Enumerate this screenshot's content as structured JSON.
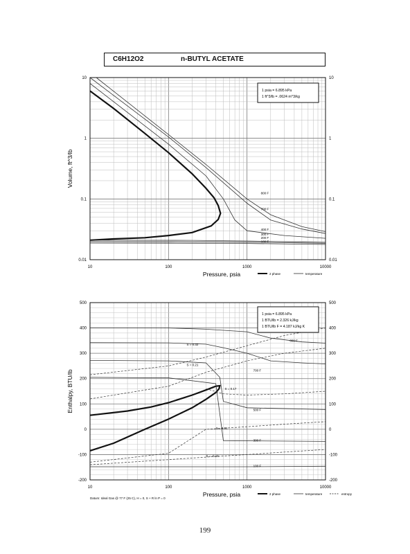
{
  "header": {
    "formula": "C6H12O2",
    "name": "n-BUTYL ACETATE"
  },
  "page_number": "199",
  "chart_data": [
    {
      "id": "volume",
      "type": "line",
      "xlabel": "Pressure,  psia",
      "ylabel": "Volume,  ft^3/lb",
      "xscale": "log",
      "yscale": "log",
      "xlim": [
        10,
        10000
      ],
      "ylim": [
        0.01,
        10
      ],
      "x_ticks": [
        "10",
        "100",
        "1000",
        "10000"
      ],
      "y_ticks_left": [
        "10",
        "1",
        "0.1",
        "0.01"
      ],
      "y_ticks_right": [
        "10",
        "1",
        "0.1",
        "0.01"
      ],
      "grid": true,
      "conversion_box": [
        "1 psia = 6.895 kPa",
        "1 ft^3/lb = .0624 m^3/kg"
      ],
      "legend": [
        {
          "label": "2 phase",
          "style": "thick"
        },
        {
          "label": "temperature",
          "style": "thin"
        }
      ],
      "series": [
        {
          "kind": "2phase",
          "points": [
            [
              10,
              6
            ],
            [
              20,
              3.1
            ],
            [
              50,
              1.2
            ],
            [
              100,
              0.58
            ],
            [
              200,
              0.26
            ],
            [
              300,
              0.15
            ],
            [
              380,
              0.105
            ],
            [
              430,
              0.078
            ],
            [
              460,
              0.058
            ],
            [
              430,
              0.046
            ],
            [
              350,
              0.036
            ],
            [
              200,
              0.028
            ],
            [
              100,
              0.025
            ],
            [
              50,
              0.023
            ],
            [
              20,
              0.022
            ],
            [
              10,
              0.021
            ]
          ]
        },
        {
          "kind": "iso",
          "label": "100 F",
          "points": [
            [
              10,
              0.0188
            ],
            [
              100,
              0.0187
            ],
            [
              1000,
              0.0185
            ],
            [
              10000,
              0.0178
            ]
          ]
        },
        {
          "kind": "iso",
          "label": "200 F",
          "points": [
            [
              10,
              0.0198
            ],
            [
              100,
              0.0197
            ],
            [
              1000,
              0.0194
            ],
            [
              10000,
              0.0186
            ]
          ]
        },
        {
          "kind": "iso",
          "label": "300 F",
          "points": [
            [
              10,
              0.0209
            ],
            [
              200,
              0.0208
            ],
            [
              1000,
              0.0203
            ],
            [
              10000,
              0.0192
            ]
          ]
        },
        {
          "kind": "iso",
          "label": "400 F",
          "points": [
            [
              10,
              8
            ],
            [
              100,
              0.8
            ],
            [
              300,
              0.24
            ],
            [
              500,
              0.1
            ],
            [
              700,
              0.045
            ],
            [
              1000,
              0.03
            ],
            [
              3000,
              0.025
            ],
            [
              10000,
              0.0225
            ]
          ]
        },
        {
          "kind": "iso",
          "label": "700 F",
          "points": [
            [
              10,
              10
            ],
            [
              100,
              1.05
            ],
            [
              300,
              0.33
            ],
            [
              1000,
              0.085
            ],
            [
              2000,
              0.045
            ],
            [
              5000,
              0.032
            ],
            [
              10000,
              0.027
            ]
          ]
        },
        {
          "kind": "iso",
          "label": "800 F",
          "points": [
            [
              12,
              10
            ],
            [
              100,
              1.15
            ],
            [
              300,
              0.37
            ],
            [
              1000,
              0.1
            ],
            [
              2000,
              0.055
            ],
            [
              5000,
              0.035
            ],
            [
              10000,
              0.029
            ]
          ]
        }
      ],
      "annotations": [
        {
          "text": "800 F",
          "x": 1500,
          "y": 0.12
        },
        {
          "text": "700 F",
          "x": 1500,
          "y": 0.065
        },
        {
          "text": "400 F",
          "x": 1500,
          "y": 0.03
        },
        {
          "text": "300 F",
          "x": 1500,
          "y": 0.025
        },
        {
          "text": "200 F",
          "x": 1500,
          "y": 0.022
        },
        {
          "text": "100 F",
          "x": 1500,
          "y": 0.019
        }
      ]
    },
    {
      "id": "enthalpy",
      "type": "line",
      "xlabel": "Pressure,  psia",
      "ylabel": "Enthalpy,  BTU/lb",
      "xscale": "log",
      "yscale": "linear",
      "xlim": [
        10,
        10000
      ],
      "ylim": [
        -200,
        500
      ],
      "x_ticks": [
        "10",
        "100",
        "1000",
        "10000"
      ],
      "y_ticks_left": [
        "500",
        "400",
        "300",
        "200",
        "100",
        "0",
        "-100",
        "-200"
      ],
      "y_ticks_right": [
        "500",
        "400",
        "300",
        "200",
        "100",
        "0",
        "-100",
        "-200"
      ],
      "grid": true,
      "conversion_box": [
        "1 psia = 6.895 kPa",
        "1 BTU/lb = 2.326 kJ/kg",
        "1 BTU/lb F = 4.187 kJ/kg K"
      ],
      "footnote": "Datum: Ideal Gas @ 77 F (25 C),  H = 0,  S + R ln P = 0",
      "legend": [
        {
          "label": "2 phase",
          "style": "thick"
        },
        {
          "label": "temperature",
          "style": "thin"
        },
        {
          "label": "entropy",
          "style": "dashed"
        }
      ],
      "series": [
        {
          "kind": "2phase",
          "points": [
            [
              10,
              55
            ],
            [
              30,
              72
            ],
            [
              60,
              88
            ],
            [
              100,
              105
            ],
            [
              200,
              135
            ],
            [
              300,
              155
            ],
            [
              400,
              170
            ],
            [
              450,
              172
            ],
            [
              440,
              160
            ],
            [
              400,
              145
            ],
            [
              300,
              118
            ],
            [
              200,
              85
            ],
            [
              100,
              40
            ],
            [
              50,
              0
            ],
            [
              20,
              -55
            ],
            [
              10,
              -85
            ]
          ]
        },
        {
          "kind": "iso",
          "label": "800 F",
          "points": [
            [
              10,
              400
            ],
            [
              100,
              400
            ],
            [
              300,
              395
            ],
            [
              1000,
              385
            ],
            [
              2000,
              360
            ],
            [
              5000,
              345
            ],
            [
              10000,
              340
            ]
          ]
        },
        {
          "kind": "iso",
          "label": "700 F",
          "points": [
            [
              10,
              342
            ],
            [
              100,
              341
            ],
            [
              300,
              336
            ],
            [
              500,
              322
            ],
            [
              1000,
              300
            ],
            [
              2000,
              270
            ],
            [
              5000,
              262
            ],
            [
              10000,
              258
            ]
          ]
        },
        {
          "kind": "iso",
          "label": "500 F",
          "points": [
            [
              10,
              272
            ],
            [
              100,
              270
            ],
            [
              300,
              262
            ],
            [
              450,
              205
            ],
            [
              500,
              110
            ],
            [
              1000,
              85
            ],
            [
              10000,
              78
            ]
          ]
        },
        {
          "kind": "iso",
          "label": "300 F",
          "points": [
            [
              10,
              205
            ],
            [
              100,
              203
            ],
            [
              400,
              180
            ],
            [
              500,
              -45
            ],
            [
              10000,
              -48
            ]
          ]
        },
        {
          "kind": "iso",
          "label": "100 F",
          "points": [
            [
              10,
              -148
            ],
            [
              1000,
              -148
            ],
            [
              10000,
              -146
            ]
          ]
        },
        {
          "kind": "entropy",
          "label": "S = 0.32",
          "points": [
            [
              10,
              215
            ],
            [
              100,
              250
            ],
            [
              300,
              285
            ],
            [
              1000,
              330
            ],
            [
              3000,
              370
            ],
            [
              10000,
              400
            ]
          ]
        },
        {
          "kind": "entropy",
          "label": "S = 0.21",
          "points": [
            [
              10,
              120
            ],
            [
              100,
              170
            ],
            [
              300,
              225
            ],
            [
              1000,
              270
            ],
            [
              3000,
              300
            ],
            [
              10000,
              320
            ]
          ]
        },
        {
          "kind": "entropy",
          "label": "S = 0.17",
          "points": [
            [
              300,
              160
            ],
            [
              500,
              140
            ],
            [
              1000,
              135
            ],
            [
              3000,
              140
            ],
            [
              10000,
              150
            ]
          ]
        },
        {
          "kind": "entropy",
          "label": "S = 0.01",
          "points": [
            [
              10,
              -130
            ],
            [
              100,
              -95
            ],
            [
              300,
              0
            ],
            [
              1000,
              10
            ],
            [
              3000,
              20
            ],
            [
              10000,
              30
            ]
          ]
        },
        {
          "kind": "entropy",
          "label": "S = -0.15",
          "points": [
            [
              10,
              -140
            ],
            [
              100,
              -120
            ],
            [
              300,
              -110
            ],
            [
              1000,
              -100
            ],
            [
              3000,
              -90
            ],
            [
              10000,
              -80
            ]
          ]
        }
      ],
      "annotations": [
        {
          "text": "800 F",
          "x": 3500,
          "y": 345
        },
        {
          "text": "700 F",
          "x": 1200,
          "y": 228
        },
        {
          "text": "500 F",
          "x": 1200,
          "y": 72
        },
        {
          "text": "300 F",
          "x": 1200,
          "y": -48
        },
        {
          "text": "100 F",
          "x": 1200,
          "y": -150
        },
        {
          "text": "S = 0.32",
          "x": 170,
          "y": 330
        },
        {
          "text": "S = 0.21",
          "x": 170,
          "y": 250
        },
        {
          "text": "S = 0.17",
          "x": 520,
          "y": 155
        },
        {
          "text": "S = 0.01",
          "x": 400,
          "y": 0
        },
        {
          "text": "S = -0.15",
          "x": 300,
          "y": -110
        }
      ]
    }
  ]
}
